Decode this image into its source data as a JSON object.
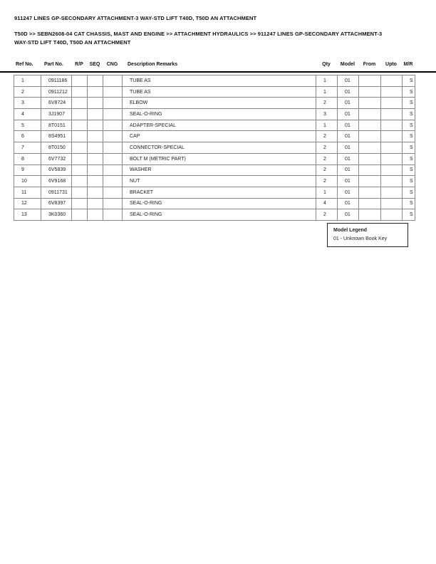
{
  "page": {
    "title": "911247 LINES GP-SECONDARY ATTACHMENT-3 WAY-STD LIFT T40D, T50D AN ATTACHMENT",
    "breadcrumb": "T50D >> SEBN2608-04 CAT CHASSIS, MAST AND ENGINE >> ATTACHMENT HYDRAULICS >> 911247 LINES GP-SECONDARY ATTACHMENT-3 WAY-STD LIFT T40D, T50D AN ATTACHMENT"
  },
  "table": {
    "columns": {
      "ref": "Ref No.",
      "part": "Part No.",
      "rp": "R/P",
      "seq": "SEQ",
      "cng": "CNG",
      "desc": "Description Remarks",
      "qty": "Qty",
      "model": "Model",
      "from": "From",
      "upto": "Upto",
      "mr": "M/R"
    },
    "rows": [
      {
        "ref": "1",
        "part": "0911186",
        "rp": "",
        "seq": "",
        "cng": "",
        "desc": "TUBE AS",
        "qty": "1",
        "model": "01",
        "from": "",
        "upto": "",
        "mr": "S"
      },
      {
        "ref": "2",
        "part": "0911212",
        "rp": "",
        "seq": "",
        "cng": "",
        "desc": "TUBE AS",
        "qty": "1",
        "model": "01",
        "from": "",
        "upto": "",
        "mr": "S"
      },
      {
        "ref": "3",
        "part": "6V8724",
        "rp": "",
        "seq": "",
        "cng": "",
        "desc": "ELBOW",
        "qty": "2",
        "model": "01",
        "from": "",
        "upto": "",
        "mr": "S"
      },
      {
        "ref": "4",
        "part": "3J1907",
        "rp": "",
        "seq": "",
        "cng": "",
        "desc": "SEAL-O-RING",
        "qty": "3",
        "model": "01",
        "from": "",
        "upto": "",
        "mr": "S"
      },
      {
        "ref": "5",
        "part": "8T0151",
        "rp": "",
        "seq": "",
        "cng": "",
        "desc": "ADAPTER-SPECIAL",
        "qty": "1",
        "model": "01",
        "from": "",
        "upto": "",
        "mr": "S"
      },
      {
        "ref": "6",
        "part": "8S4951",
        "rp": "",
        "seq": "",
        "cng": "",
        "desc": "CAP",
        "qty": "2",
        "model": "01",
        "from": "",
        "upto": "",
        "mr": "S"
      },
      {
        "ref": "7",
        "part": "8T0150",
        "rp": "",
        "seq": "",
        "cng": "",
        "desc": "CONNECTOR-SPECIAL",
        "qty": "2",
        "model": "01",
        "from": "",
        "upto": "",
        "mr": "S"
      },
      {
        "ref": "8",
        "part": "6V7732",
        "rp": "",
        "seq": "",
        "cng": "",
        "desc": "BOLT M (METRIC PART)",
        "qty": "2",
        "model": "01",
        "from": "",
        "upto": "",
        "mr": "S"
      },
      {
        "ref": "9",
        "part": "6V5839",
        "rp": "",
        "seq": "",
        "cng": "",
        "desc": "WASHER",
        "qty": "2",
        "model": "01",
        "from": "",
        "upto": "",
        "mr": "S"
      },
      {
        "ref": "10",
        "part": "6V9168",
        "rp": "",
        "seq": "",
        "cng": "",
        "desc": "NUT",
        "qty": "2",
        "model": "01",
        "from": "",
        "upto": "",
        "mr": "S"
      },
      {
        "ref": "11",
        "part": "0911731",
        "rp": "",
        "seq": "",
        "cng": "",
        "desc": "BRACKET",
        "qty": "1",
        "model": "01",
        "from": "",
        "upto": "",
        "mr": "S"
      },
      {
        "ref": "12",
        "part": "6V8397",
        "rp": "",
        "seq": "",
        "cng": "",
        "desc": "SEAL-O-RING",
        "qty": "4",
        "model": "01",
        "from": "",
        "upto": "",
        "mr": "S"
      },
      {
        "ref": "13",
        "part": "3K0360",
        "rp": "",
        "seq": "",
        "cng": "",
        "desc": "SEAL-O-RING",
        "qty": "2",
        "model": "01",
        "from": "",
        "upto": "",
        "mr": "S"
      }
    ]
  },
  "legend": {
    "title": "Model Legend",
    "entries": [
      "01 - Unknown Book Key"
    ]
  },
  "colors": {
    "rule": "#000000",
    "table_border": "#888888",
    "text": "#1a1a1a"
  }
}
